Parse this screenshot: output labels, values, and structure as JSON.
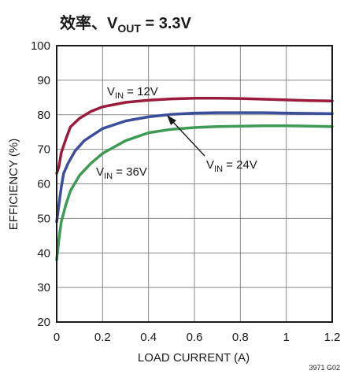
{
  "chart_data": {
    "type": "line",
    "title_main": "效率、V",
    "title_sub": "OUT",
    "title_tail": " = 3.3V",
    "xlabel": "LOAD CURRENT (A)",
    "ylabel": "EFFICIENCY (%)",
    "xlim": [
      0,
      1.2
    ],
    "ylim": [
      20,
      100
    ],
    "xticks": [
      0,
      0.2,
      0.4,
      0.6,
      0.8,
      1,
      1.2
    ],
    "xtick_labels": [
      "0",
      "0.2",
      "0.4",
      "0.6",
      "0.8",
      "1",
      "1.2"
    ],
    "yticks": [
      20,
      30,
      40,
      50,
      60,
      70,
      80,
      90,
      100
    ],
    "ytick_labels": [
      "20",
      "30",
      "40",
      "50",
      "60",
      "70",
      "80",
      "90",
      "100"
    ],
    "grid": true,
    "legend": "none",
    "series": [
      {
        "label_main": "V",
        "label_sub": "IN",
        "label_tail": " = 12V",
        "color": "#9a1b3c",
        "points": [
          [
            0,
            63
          ],
          [
            0.01,
            65
          ],
          [
            0.02,
            69
          ],
          [
            0.04,
            73
          ],
          [
            0.06,
            76.5
          ],
          [
            0.1,
            79
          ],
          [
            0.15,
            81
          ],
          [
            0.2,
            82.3
          ],
          [
            0.3,
            83.6
          ],
          [
            0.4,
            84.2
          ],
          [
            0.5,
            84.6
          ],
          [
            0.6,
            84.8
          ],
          [
            0.7,
            84.8
          ],
          [
            0.8,
            84.7
          ],
          [
            0.9,
            84.5
          ],
          [
            1.0,
            84.3
          ],
          [
            1.1,
            84.1
          ],
          [
            1.2,
            84.0
          ]
        ]
      },
      {
        "label_main": "V",
        "label_sub": "IN",
        "label_tail": " = 24V",
        "color": "#3a4e9c",
        "points": [
          [
            0,
            49
          ],
          [
            0.01,
            54
          ],
          [
            0.02,
            59
          ],
          [
            0.03,
            63
          ],
          [
            0.05,
            66
          ],
          [
            0.08,
            69.5
          ],
          [
            0.12,
            72.5
          ],
          [
            0.2,
            76
          ],
          [
            0.3,
            78.2
          ],
          [
            0.4,
            79.4
          ],
          [
            0.5,
            80.1
          ],
          [
            0.6,
            80.5
          ],
          [
            0.7,
            80.6
          ],
          [
            0.8,
            80.6
          ],
          [
            0.9,
            80.6
          ],
          [
            1.0,
            80.5
          ],
          [
            1.1,
            80.4
          ],
          [
            1.2,
            80.3
          ]
        ]
      },
      {
        "label_main": "V",
        "label_sub": "IN",
        "label_tail": " = 36V",
        "color": "#3e9a57",
        "points": [
          [
            0,
            38
          ],
          [
            0.01,
            44
          ],
          [
            0.02,
            49
          ],
          [
            0.04,
            54
          ],
          [
            0.06,
            58
          ],
          [
            0.1,
            62.5
          ],
          [
            0.15,
            66
          ],
          [
            0.2,
            68.8
          ],
          [
            0.3,
            72.5
          ],
          [
            0.4,
            74.8
          ],
          [
            0.5,
            75.8
          ],
          [
            0.6,
            76.3
          ],
          [
            0.7,
            76.6
          ],
          [
            0.8,
            76.7
          ],
          [
            0.9,
            76.8
          ],
          [
            1.0,
            76.8
          ],
          [
            1.1,
            76.7
          ],
          [
            1.2,
            76.6
          ]
        ]
      }
    ],
    "figure_id": "3971 G02"
  }
}
